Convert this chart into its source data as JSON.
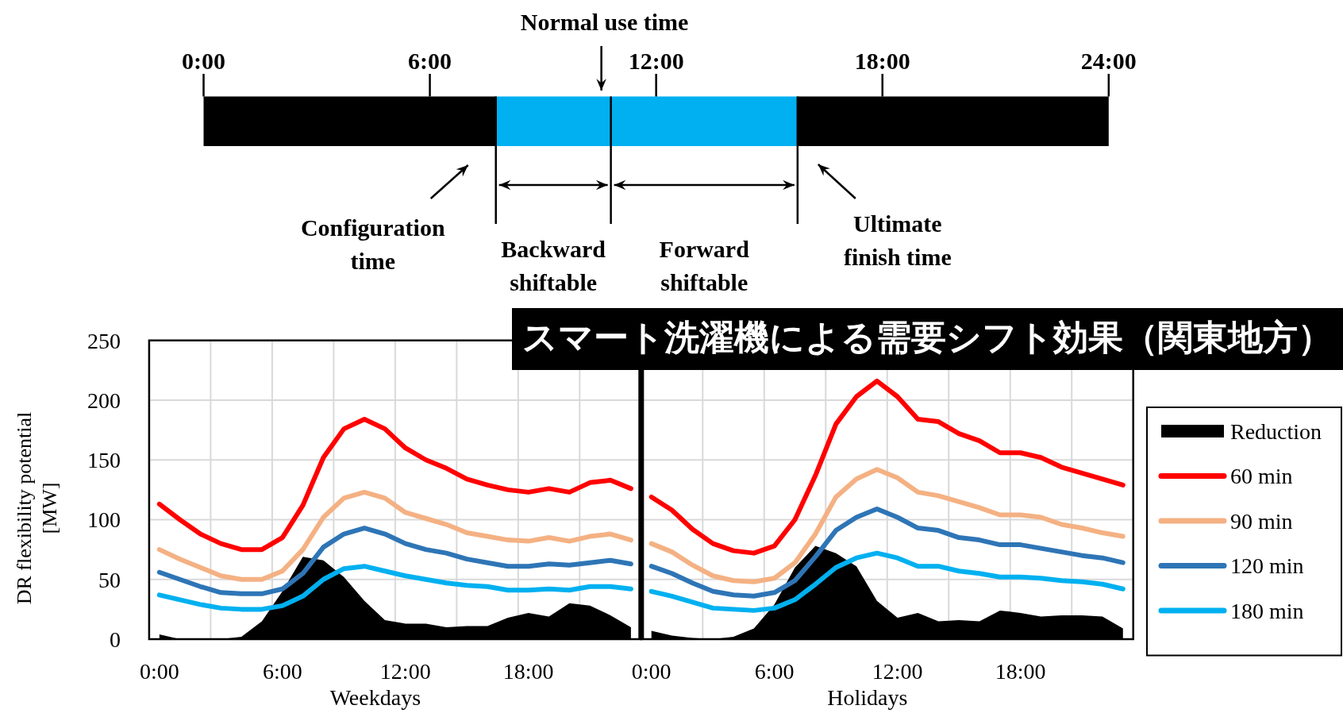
{
  "chart_data": [
    {
      "type": "bar",
      "orientation": "horizontal",
      "stacked": true,
      "categories": [
        null
      ],
      "series": [
        {
          "color": "#000000",
          "values": [
            7.75
          ]
        },
        {
          "color": "#00b0f0",
          "values": [
            3.05
          ]
        },
        {
          "color": "#00b0f0",
          "values": [
            4.95
          ]
        },
        {
          "color": "#000000",
          "values": [
            8.25
          ]
        }
      ],
      "xlim": [
        0,
        24
      ],
      "xticks": [
        {
          "value": 0,
          "label": "0:00"
        },
        {
          "value": 6,
          "label": "6:00"
        },
        {
          "value": 12,
          "label": "12:00"
        },
        {
          "value": 18,
          "label": "18:00"
        },
        {
          "value": 24,
          "label": "24:00"
        }
      ],
      "tick_labels": "x",
      "ref_lines": [
        {
          "axis": "x",
          "value": 7.75
        },
        {
          "axis": "x",
          "value": 10.8
        },
        {
          "axis": "x",
          "value": 15.75
        }
      ],
      "annotations": [
        "Normal use time",
        "Configuration time",
        "Backward shiftable",
        "Forward shiftable",
        "Ultimate finish time"
      ]
    },
    {
      "type": "line",
      "ylabel": "DR flexibility potential [MW]",
      "xlabel": "Weekdays",
      "x": [
        0,
        1,
        2,
        3,
        4,
        5,
        6,
        7,
        8,
        9,
        10,
        11,
        12,
        13,
        14,
        15,
        16,
        17,
        18,
        19,
        20,
        21,
        22,
        23
      ],
      "series": [
        {
          "type": "area",
          "color": "#000000",
          "values": [
            4,
            0,
            0,
            0,
            2,
            15,
            40,
            69,
            66,
            52,
            32,
            16,
            13,
            13,
            10,
            11,
            11,
            18,
            22,
            19,
            30,
            28,
            20,
            10
          ]
        },
        {
          "color": "#ff0000",
          "values": [
            113,
            100,
            88,
            80,
            75,
            75,
            85,
            112,
            152,
            176,
            184,
            176,
            160,
            150,
            143,
            134,
            129,
            125,
            123,
            126,
            123,
            131,
            133,
            126
          ]
        },
        {
          "color": "#f4b183",
          "values": [
            75,
            67,
            60,
            53,
            50,
            50,
            57,
            75,
            102,
            118,
            123,
            118,
            106,
            101,
            96,
            89,
            86,
            83,
            82,
            85,
            82,
            86,
            88,
            83
          ]
        },
        {
          "color": "#2e75b6",
          "values": [
            56,
            50,
            44,
            39,
            38,
            38,
            42,
            55,
            77,
            88,
            93,
            88,
            80,
            75,
            72,
            67,
            64,
            61,
            61,
            63,
            62,
            64,
            66,
            63
          ]
        },
        {
          "color": "#00b0f0",
          "values": [
            37,
            33,
            29,
            26,
            25,
            25,
            28,
            36,
            50,
            59,
            61,
            57,
            53,
            50,
            47,
            45,
            44,
            41,
            41,
            42,
            41,
            44,
            44,
            42
          ]
        }
      ],
      "xlim": [
        -0.5,
        23.5
      ],
      "xticks": [
        {
          "value": 0,
          "label": "0:00"
        },
        {
          "value": 6,
          "label": "6:00"
        },
        {
          "value": 12,
          "label": "12:00"
        },
        {
          "value": 18,
          "label": "18:00"
        },
        {
          "value": 2.5,
          "label": null
        },
        {
          "value": 5.5,
          "label": null
        },
        {
          "value": 8.5,
          "label": null
        },
        {
          "value": 11.5,
          "label": null
        },
        {
          "value": 14.5,
          "label": null
        },
        {
          "value": 17.5,
          "label": null
        },
        {
          "value": 20.5,
          "label": null
        }
      ],
      "ylim": [
        0,
        250
      ],
      "yticks": [
        0,
        50,
        100,
        150,
        200,
        250
      ],
      "grid": true
    },
    {
      "type": "line",
      "title": "スマート洗濯機による需要シフト効果（関東地方）",
      "xlabel": "Holidays",
      "x": [
        0,
        1,
        2,
        3,
        4,
        5,
        6,
        7,
        8,
        9,
        10,
        11,
        12,
        13,
        14,
        15,
        16,
        17,
        18,
        19,
        20,
        21,
        22,
        23
      ],
      "series": [
        {
          "name": "Reduction",
          "type": "area",
          "color": "#000000",
          "values": [
            7,
            3,
            1,
            0,
            2,
            9,
            29,
            60,
            78,
            72,
            61,
            32,
            18,
            22,
            15,
            16,
            15,
            24,
            22,
            19,
            20,
            20,
            19,
            9
          ]
        },
        {
          "name": "60 min",
          "color": "#ff0000",
          "values": [
            119,
            108,
            92,
            80,
            74,
            72,
            78,
            100,
            137,
            180,
            203,
            216,
            203,
            184,
            182,
            172,
            166,
            156,
            156,
            152,
            144,
            139,
            134,
            129
          ]
        },
        {
          "name": "90 min",
          "color": "#f4b183",
          "values": [
            80,
            73,
            62,
            53,
            49,
            48,
            51,
            64,
            88,
            119,
            134,
            142,
            135,
            123,
            120,
            115,
            110,
            104,
            104,
            102,
            96,
            93,
            89,
            86
          ]
        },
        {
          "name": "120 min",
          "color": "#2e75b6",
          "values": [
            61,
            55,
            47,
            40,
            37,
            36,
            39,
            49,
            69,
            91,
            102,
            109,
            102,
            93,
            91,
            85,
            83,
            79,
            79,
            76,
            73,
            70,
            68,
            64
          ]
        },
        {
          "name": "180 min",
          "color": "#00b0f0",
          "values": [
            40,
            36,
            31,
            26,
            25,
            24,
            26,
            33,
            46,
            60,
            68,
            72,
            68,
            61,
            61,
            57,
            55,
            52,
            52,
            51,
            49,
            48,
            46,
            42
          ]
        }
      ],
      "xlim": [
        -0.5,
        23.5
      ],
      "xticks": [
        {
          "value": 0,
          "label": "0:00"
        },
        {
          "value": 6,
          "label": "6:00"
        },
        {
          "value": 12,
          "label": "12:00"
        },
        {
          "value": 18,
          "label": "18:00"
        },
        {
          "value": 2.5,
          "label": null
        },
        {
          "value": 5.5,
          "label": null
        },
        {
          "value": 8.5,
          "label": null
        },
        {
          "value": 11.5,
          "label": null
        },
        {
          "value": 14.5,
          "label": null
        },
        {
          "value": 17.5,
          "label": null
        },
        {
          "value": 20.5,
          "label": null
        }
      ],
      "ylim": [
        0,
        250
      ],
      "yticks": [
        0,
        50,
        100,
        150,
        200,
        250
      ],
      "tick_labels": "x",
      "grid": true,
      "legend": "right"
    }
  ]
}
